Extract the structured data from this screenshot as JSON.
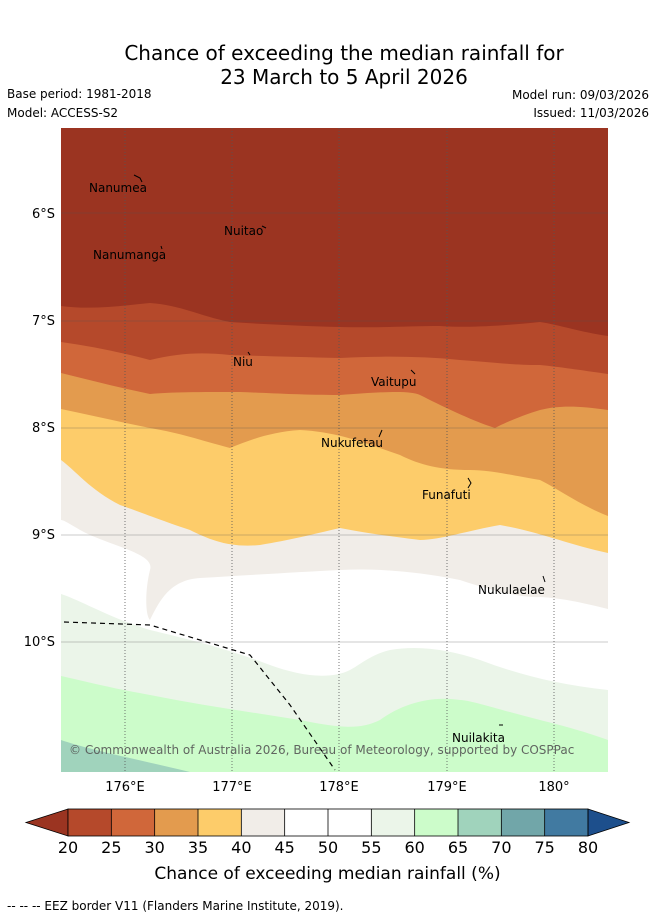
{
  "title": {
    "line1": "Chance of exceeding the median rainfall for",
    "line2": "23 March to 5 April 2026"
  },
  "meta": {
    "base_period": "Base period: 1981-2018",
    "model": "Model: ACCESS-S2",
    "model_run": "Model run: 09/03/2026",
    "issued": "Issued: 11/03/2026"
  },
  "map": {
    "lat_labels": [
      "6°S",
      "7°S",
      "8°S",
      "9°S",
      "10°S"
    ],
    "lon_labels": [
      "176°E",
      "177°E",
      "178°E",
      "179°E",
      "180°"
    ],
    "places": [
      "Nanumea",
      "Nuitao",
      "Nanumanga",
      "Niu",
      "Vaitupu",
      "Nukufetau",
      "Funafuti",
      "Nukulaelae",
      "Nuilakita"
    ],
    "copyright": "© Commonwealth of Australia 2026, Bureau of Meteorology, supported by COSPPac",
    "legend_scale": {
      "ticks": [
        "20",
        "25",
        "30",
        "35",
        "40",
        "45",
        "50",
        "55",
        "60",
        "65",
        "70",
        "75",
        "80"
      ],
      "colors": [
        "#b5492b",
        "#d0673a",
        "#e39b4e",
        "#fdcc6a",
        "#f1ede8",
        "#ffffff",
        "#ffffff",
        "#ebf5e9",
        "#ccfcca",
        "#a0d3bc",
        "#71a6a9",
        "#417aa1"
      ],
      "below_color": "#9b3421",
      "above_color": "#1d4f8c",
      "title": "Chance of exceeding median rainfall (%)"
    }
  },
  "footer": {
    "eez_note": "-- -- -- EEZ border V11 (Flanders Marine Institute, 2019)."
  }
}
